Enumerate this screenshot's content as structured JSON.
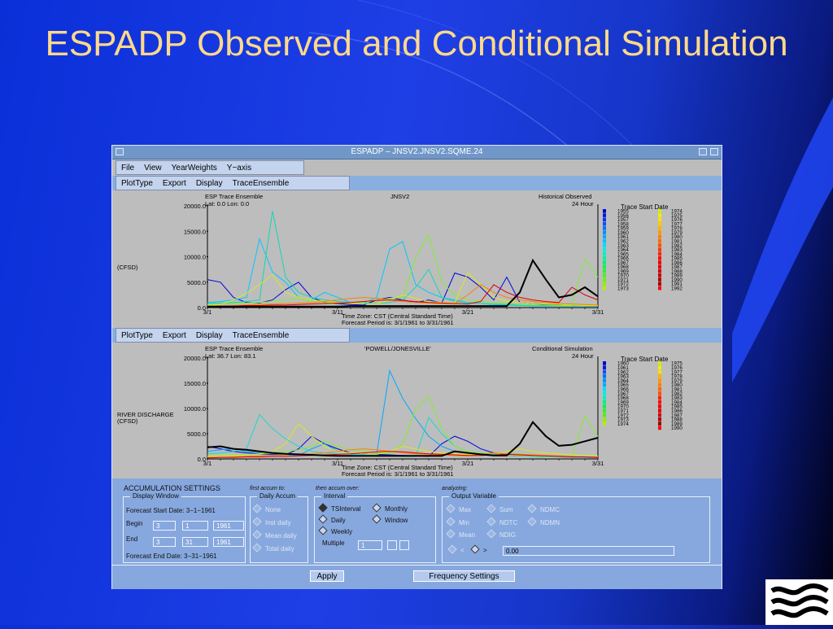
{
  "slide": {
    "title": "ESPADP Observed and Conditional Simulation"
  },
  "window": {
    "title": "ESPADP – JNSV2.JNSV2.SQME.24"
  },
  "main_menu": [
    "File",
    "View",
    "YearWeights",
    "Y−axis"
  ],
  "plot_menu": [
    "PlotType",
    "Export",
    "Display",
    "TraceEnsemble"
  ],
  "colors": {
    "observed": "#000000",
    "panel": "#87a8de",
    "plot_bg": "#bdbdbd"
  },
  "plots": [
    {
      "header_left": "ESP Trace Ensemble",
      "header_center": "JNSV2",
      "header_right": "Historical Observed",
      "lat_lon": "Lat: 0.0    Lon:  0.0",
      "interval": "24 Hour",
      "ylabel": "(CFSD)",
      "ylabel2": "",
      "ytick_labels": [
        "20000.0",
        "15000.0",
        "10000.0",
        "5000.0",
        "0.0"
      ],
      "xtick_labels": [
        "3/1",
        "3/11",
        "3/21",
        "3/31"
      ],
      "timezone": "Time Zone: CST (Central Standard Time)",
      "forecast_period": "Forecast Period is: 3/1/1961 to 3/31/1961",
      "legend_title": "Trace Start Date",
      "legend_col1": [
        "1955",
        "1956",
        "1957",
        "1958",
        "1959",
        "1960",
        "1961",
        "1962",
        "1963",
        "1964",
        "1965",
        "1966",
        "1967",
        "1968",
        "1969",
        "1970",
        "1971",
        "1972",
        "1973"
      ],
      "legend_col2": [
        "1974",
        "1975",
        "1976",
        "1977",
        "1978",
        "1979",
        "1980",
        "1981",
        "1982",
        "1983",
        "1984",
        "1985",
        "1986",
        "1987",
        "1988",
        "1989",
        "1990",
        "1991",
        "1992"
      ]
    },
    {
      "header_left": "ESP Trace Ensemble",
      "header_center": "'POWELL/JONESVILLE'",
      "header_right": "Conditional Simulation",
      "lat_lon": "Lat: 36.7    Lon:  83.1",
      "interval": "24 Hour",
      "ylabel": "RIVER DISCHARGE",
      "ylabel2": "(CFSD)",
      "ytick_labels": [
        "20000.0",
        "15000.0",
        "10000.0",
        "5000.0",
        "0.0"
      ],
      "xtick_labels": [
        "3/1",
        "3/11",
        "3/21",
        "3/31"
      ],
      "timezone": "Time Zone: CST (Central Standard Time)",
      "forecast_period": "Forecast Period is: 3/1/1961 to 3/31/1961",
      "legend_title": "Trace Start Date",
      "legend_col1": [
        "1960",
        "1961",
        "1962",
        "1963",
        "1964",
        "1965",
        "1966",
        "1967",
        "1968",
        "1969",
        "1970",
        "1971",
        "1972",
        "1973",
        "1974"
      ],
      "legend_col2": [
        "1975",
        "1976",
        "1977",
        "1978",
        "1979",
        "1980",
        "1981",
        "1982",
        "1983",
        "1984",
        "1985",
        "1986",
        "1987",
        "1988",
        "1989",
        "1990"
      ]
    }
  ],
  "chart_data": [
    {
      "type": "line",
      "title": "JNSV2 Historical Observed",
      "ylabel": "(CFSD)",
      "ylim": [
        0,
        20000
      ],
      "x": [
        1,
        2,
        3,
        4,
        5,
        6,
        7,
        8,
        9,
        10,
        11,
        12,
        13,
        14,
        15,
        16,
        17,
        18,
        19,
        20,
        21,
        22,
        23,
        24,
        25,
        26,
        27,
        28,
        29,
        30,
        31
      ],
      "series": [
        {
          "name": "observed",
          "color": "#000000",
          "values": [
            200,
            200,
            200,
            200,
            200,
            200,
            200,
            200,
            200,
            200,
            200,
            300,
            300,
            300,
            300,
            300,
            300,
            300,
            300,
            300,
            300,
            300,
            300,
            300,
            3000,
            9300,
            5500,
            2000,
            2500,
            4000,
            2200
          ]
        },
        {
          "name": "1955",
          "color": "#0000dd",
          "values": [
            5500,
            5000,
            2000,
            1000,
            900,
            1500,
            3500,
            5000,
            2000,
            1000,
            800,
            600,
            500,
            1500,
            2000,
            1500,
            1000,
            1500,
            900,
            6800,
            6000,
            4000,
            1500,
            6000,
            1000,
            800,
            600,
            500,
            400,
            300,
            300
          ]
        },
        {
          "name": "1959",
          "color": "#00c8ff",
          "values": [
            1000,
            1200,
            1500,
            2000,
            13500,
            7000,
            5000,
            2000,
            1500,
            3000,
            2000,
            1000,
            900,
            2000,
            11500,
            13000,
            4500,
            3000,
            2000,
            1500,
            1000,
            800,
            600,
            500,
            400,
            300,
            300,
            300,
            300,
            300,
            300
          ]
        },
        {
          "name": "1965",
          "color": "#10d8b0",
          "values": [
            800,
            900,
            1000,
            1200,
            1500,
            19000,
            6000,
            3000,
            2000,
            1500,
            1200,
            1000,
            900,
            800,
            1000,
            1500,
            4000,
            7500,
            2000,
            1200,
            900,
            800,
            700,
            600,
            500,
            400,
            400,
            300,
            300,
            300,
            300
          ]
        },
        {
          "name": "1970",
          "color": "#80ee30",
          "values": [
            600,
            700,
            800,
            900,
            1000,
            1200,
            1500,
            1800,
            1200,
            1000,
            900,
            900,
            1200,
            1500,
            1800,
            2000,
            9800,
            14300,
            5000,
            2500,
            1500,
            1200,
            1000,
            800,
            600,
            500,
            500,
            400,
            400,
            9500,
            6000
          ]
        },
        {
          "name": "1976",
          "color": "#d8e820",
          "values": [
            500,
            600,
            1500,
            2800,
            4500,
            6500,
            3000,
            2000,
            1500,
            1200,
            1000,
            900,
            800,
            700,
            1500,
            2500,
            1800,
            1200,
            1000,
            900,
            6800,
            4500,
            2000,
            1200,
            1000,
            800,
            700,
            600,
            500,
            400,
            400
          ]
        },
        {
          "name": "1984",
          "color": "#ff8000",
          "values": [
            300,
            300,
            400,
            500,
            600,
            700,
            800,
            900,
            1000,
            1200,
            1500,
            1800,
            2000,
            1800,
            1500,
            1200,
            1000,
            900,
            800,
            700,
            2500,
            4500,
            3000,
            2000,
            1500,
            1200,
            1000,
            800,
            700,
            600,
            500
          ]
        },
        {
          "name": "1990",
          "color": "#e00000",
          "values": [
            200,
            300,
            300,
            400,
            400,
            500,
            500,
            600,
            700,
            800,
            900,
            1000,
            1200,
            1400,
            1500,
            1400,
            1200,
            1000,
            900,
            800,
            700,
            1200,
            4500,
            3000,
            2000,
            1500,
            1200,
            1000,
            4000,
            2500,
            1500
          ]
        }
      ]
    },
    {
      "type": "line",
      "title": "'POWELL/JONESVILLE' Conditional Simulation",
      "ylabel": "RIVER DISCHARGE (CFSD)",
      "ylim": [
        0,
        20000
      ],
      "x": [
        1,
        2,
        3,
        4,
        5,
        6,
        7,
        8,
        9,
        10,
        11,
        12,
        13,
        14,
        15,
        16,
        17,
        18,
        19,
        20,
        21,
        22,
        23,
        24,
        25,
        26,
        27,
        28,
        29,
        30,
        31
      ],
      "series": [
        {
          "name": "observed",
          "color": "#000000",
          "values": [
            2300,
            2500,
            2000,
            1800,
            1500,
            1200,
            1000,
            900,
            800,
            700,
            600,
            600,
            600,
            600,
            600,
            600,
            600,
            600,
            600,
            1500,
            1200,
            900,
            700,
            700,
            3000,
            7300,
            4500,
            2600,
            2800,
            3500,
            4200
          ]
        },
        {
          "name": "1960",
          "color": "#0000dd",
          "values": [
            2500,
            2000,
            1500,
            1200,
            1000,
            900,
            800,
            2000,
            4500,
            3000,
            2000,
            1200,
            1000,
            900,
            800,
            700,
            600,
            500,
            3000,
            4500,
            3500,
            2000,
            1200,
            900,
            800,
            700,
            600,
            500,
            400,
            300,
            300
          ]
        },
        {
          "name": "1963",
          "color": "#00a8ff",
          "values": [
            1500,
            1800,
            2000,
            1500,
            1200,
            1000,
            800,
            700,
            2000,
            3000,
            1500,
            1200,
            1000,
            900,
            17500,
            12000,
            8000,
            4500,
            2500,
            1500,
            1200,
            1000,
            800,
            700,
            600,
            500,
            400,
            400,
            300,
            300,
            300
          ]
        },
        {
          "name": "1967",
          "color": "#18d8d0",
          "values": [
            1000,
            1200,
            1500,
            2000,
            8800,
            6000,
            4000,
            2500,
            1500,
            1200,
            1000,
            900,
            800,
            700,
            600,
            500,
            500,
            8200,
            5000,
            2500,
            1500,
            1200,
            1000,
            800,
            600,
            500,
            400,
            400,
            300,
            300,
            300
          ]
        },
        {
          "name": "1972",
          "color": "#80ee30",
          "values": [
            600,
            700,
            800,
            900,
            1000,
            1200,
            1500,
            1800,
            2500,
            3500,
            2500,
            1800,
            1500,
            1200,
            1000,
            3000,
            9800,
            12400,
            6000,
            2500,
            1500,
            1200,
            1000,
            800,
            700,
            600,
            500,
            500,
            400,
            8500,
            4500
          ]
        },
        {
          "name": "1978",
          "color": "#d8e820",
          "values": [
            500,
            600,
            700,
            800,
            1000,
            1500,
            3000,
            7000,
            4500,
            2500,
            1500,
            1200,
            1000,
            900,
            1500,
            2500,
            2000,
            1500,
            1200,
            1000,
            900,
            800,
            700,
            1500,
            2000,
            1500,
            1200,
            1000,
            800,
            700,
            600
          ]
        },
        {
          "name": "1984",
          "color": "#ff8000",
          "values": [
            300,
            300,
            400,
            500,
            600,
            700,
            800,
            900,
            1000,
            1200,
            1500,
            1800,
            2000,
            1800,
            1500,
            1200,
            1000,
            900,
            800,
            700,
            600,
            900,
            1200,
            1000,
            900,
            800,
            700,
            600,
            500,
            400,
            400
          ]
        },
        {
          "name": "1990",
          "color": "#e00000",
          "values": [
            200,
            300,
            300,
            400,
            400,
            500,
            500,
            600,
            700,
            800,
            900,
            1000,
            1200,
            1400,
            1500,
            1400,
            1200,
            1000,
            900,
            800,
            700,
            700,
            800,
            900,
            800,
            700,
            600,
            500,
            400,
            400,
            300
          ]
        }
      ]
    }
  ],
  "accumulation": {
    "title": "ACCUMULATION SETTINGS",
    "first_accum": "first accum to:",
    "then_accum": "then accum over:",
    "analyzing": "analyzing:",
    "display_window": {
      "title": "Display Window",
      "start_label": "Forecast Start Date:  3−1−1961",
      "begin_label": "Begin",
      "begin": [
        "3",
        "1",
        "1961"
      ],
      "end_label": "End",
      "end": [
        "3",
        "31",
        "1961"
      ],
      "end_date_label": "Forecast End Date:  3−31−1961"
    },
    "daily_accum": {
      "title": "Daily Accum",
      "options": [
        "None",
        "Inst daily",
        "Mean daily",
        "Total daily"
      ]
    },
    "interval": {
      "title": "Interval",
      "options_col1": [
        "TSInterval",
        "Daily",
        "Weekly"
      ],
      "options_col2": [
        "Monthly",
        "Window"
      ],
      "multiple_label": "Multiple",
      "multiple_value": "1"
    },
    "output_variable": {
      "title": "Output Variable",
      "row1": [
        "Max",
        "Sum",
        "NDMC"
      ],
      "row2": [
        "Min",
        "NDTC",
        "NDMN"
      ],
      "row3": [
        "Mean",
        "NDIG"
      ],
      "lt": "<",
      "gt": ">",
      "value": "0.00"
    }
  },
  "buttons": {
    "apply": "Apply",
    "frequency": "Frequency Settings"
  }
}
